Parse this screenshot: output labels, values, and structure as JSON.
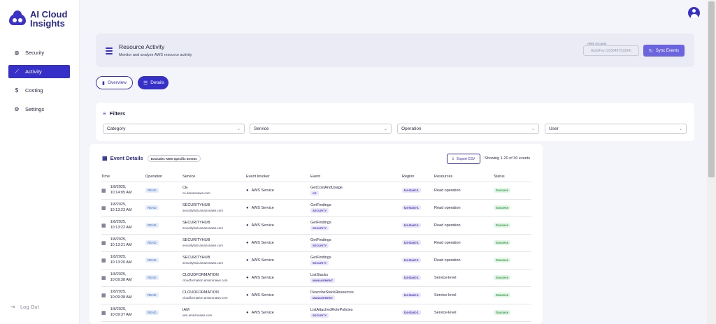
{
  "brand": {
    "line1": "AI Cloud",
    "line2": "Insights"
  },
  "sidebar": {
    "items": [
      {
        "label": "Security",
        "icon": "globe-icon",
        "active": false
      },
      {
        "label": "Activity",
        "icon": "trend-icon",
        "active": true
      },
      {
        "label": "Costing",
        "icon": "dollar-icon",
        "active": false
      },
      {
        "label": "Settings",
        "icon": "gear-icon",
        "active": false
      }
    ],
    "logout": "Log Out"
  },
  "header": {
    "title": "Resource Activity",
    "subtitle": "Monitor and analyze AWS resource activity",
    "account_label": "AWS Account",
    "account_value": "BuildFoy (203848753394)",
    "sync_label": "Sync Events"
  },
  "tabs": [
    {
      "label": "Overview",
      "active": false
    },
    {
      "label": "Details",
      "active": true
    }
  ],
  "filters": {
    "title": "Filters",
    "selects": [
      "Category",
      "Service",
      "Operation",
      "User"
    ]
  },
  "events": {
    "title": "Event Details",
    "badge": "Excludes AWS Specific Events",
    "export_label": "Export CSV",
    "showing": "Showing 1-20 of 30 events",
    "columns": [
      "Time",
      "Operation",
      "Service",
      "Event Invoker",
      "Event",
      "Region",
      "Resources",
      "Status"
    ],
    "rows": [
      {
        "date": "1/8/2025,",
        "time": "10:14:05 AM",
        "op": "READ",
        "svc": "CE",
        "host": "ce.amazonaws.com",
        "invoker": "AWS Service",
        "event": "GetCostAndUsage",
        "category": "CE",
        "region": "Us-East-1",
        "resources": "Read operation",
        "status": "Success"
      },
      {
        "date": "1/8/2025,",
        "time": "10:13:23 AM",
        "op": "READ",
        "svc": "SECURITYHUB",
        "host": "securityhub.amazonaws.com",
        "invoker": "AWS Service",
        "event": "GetFindings",
        "category": "SECURITY",
        "region": "Us-East-1",
        "resources": "Read operation",
        "status": "Success"
      },
      {
        "date": "1/8/2025,",
        "time": "10:13:22 AM",
        "op": "READ",
        "svc": "SECURITYHUB",
        "host": "securityhub.amazonaws.com",
        "invoker": "AWS Service",
        "event": "GetFindings",
        "category": "SECURITY",
        "region": "Us-East-1",
        "resources": "Read operation",
        "status": "Success"
      },
      {
        "date": "1/8/2025,",
        "time": "10:13:21 AM",
        "op": "READ",
        "svc": "SECURITYHUB",
        "host": "securityhub.amazonaws.com",
        "invoker": "AWS Service",
        "event": "GetFindings",
        "category": "SECURITY",
        "region": "Us-East-1",
        "resources": "Read operation",
        "status": "Success"
      },
      {
        "date": "1/8/2025,",
        "time": "10:13:20 AM",
        "op": "READ",
        "svc": "SECURITYHUB",
        "host": "securityhub.amazonaws.com",
        "invoker": "AWS Service",
        "event": "GetFindings",
        "category": "SECURITY",
        "region": "Us-East-1",
        "resources": "Read operation",
        "status": "Success"
      },
      {
        "date": "1/8/2025,",
        "time": "10:09:38 AM",
        "op": "READ",
        "svc": "CLOUDFORMATION",
        "host": "cloudformation.amazonaws.com",
        "invoker": "AWS Service",
        "event": "ListStacks",
        "category": "MANAGEMENT",
        "region": "Us-East-1",
        "resources": "Service-level",
        "status": "Success"
      },
      {
        "date": "1/8/2025,",
        "time": "10:09:38 AM",
        "op": "READ",
        "svc": "CLOUDFORMATION",
        "host": "cloudformation.amazonaws.com",
        "invoker": "AWS Service",
        "event": "DescribeStackResources",
        "category": "MANAGEMENT",
        "region": "Us-East-1",
        "resources": "Service-level",
        "status": "Success"
      },
      {
        "date": "1/8/2025,",
        "time": "10:09:37 AM",
        "op": "READ",
        "svc": "IAM",
        "host": "iam.amazonaws.com",
        "invoker": "AWS Service",
        "event": "ListAttachedRolePolicies",
        "category": "SECURITY",
        "region": "Us-East-1",
        "resources": "Service-level",
        "status": "Success"
      }
    ]
  },
  "colors": {
    "accent": "#3730c8",
    "success": "#2e9a45",
    "sidebar_bg": "#ffffff",
    "page_bg": "#f4f5fb"
  }
}
